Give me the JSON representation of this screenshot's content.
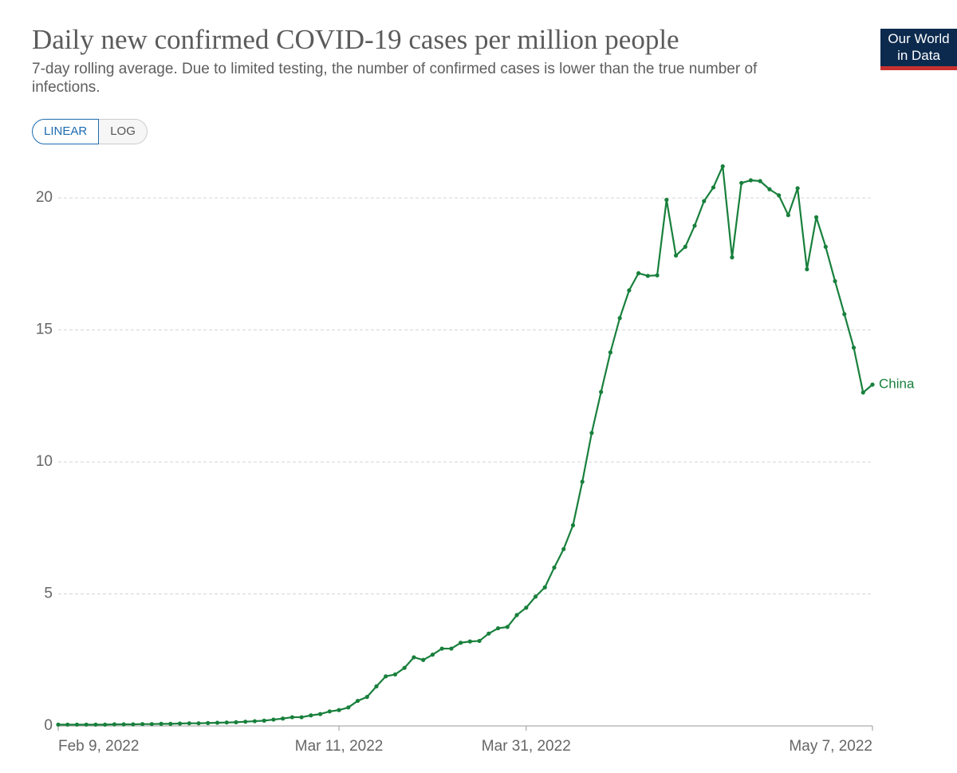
{
  "header": {
    "title": "Daily new confirmed COVID-19 cases per million people",
    "subtitle": "7-day rolling average. Due to limited testing, the number of confirmed cases is lower than the true number of infections."
  },
  "controls": [
    "LINEAR",
    "LOG"
  ],
  "logo": [
    "Our World",
    "in Data"
  ],
  "chart_data": {
    "type": "line",
    "x": [
      "Feb 9, 2022",
      "Feb 10, 2022",
      "Feb 11, 2022",
      "Feb 12, 2022",
      "Feb 13, 2022",
      "Feb 14, 2022",
      "Feb 15, 2022",
      "Feb 16, 2022",
      "Feb 17, 2022",
      "Feb 18, 2022",
      "Feb 19, 2022",
      "Feb 20, 2022",
      "Feb 21, 2022",
      "Feb 22, 2022",
      "Feb 23, 2022",
      "Feb 24, 2022",
      "Feb 25, 2022",
      "Feb 26, 2022",
      "Feb 27, 2022",
      "Feb 28, 2022",
      "Mar 1, 2022",
      "Mar 2, 2022",
      "Mar 3, 2022",
      "Mar 4, 2022",
      "Mar 5, 2022",
      "Mar 6, 2022",
      "Mar 7, 2022",
      "Mar 8, 2022",
      "Mar 9, 2022",
      "Mar 10, 2022",
      "Mar 11, 2022",
      "Mar 12, 2022",
      "Mar 13, 2022",
      "Mar 14, 2022",
      "Mar 15, 2022",
      "Mar 16, 2022",
      "Mar 17, 2022",
      "Mar 18, 2022",
      "Mar 19, 2022",
      "Mar 20, 2022",
      "Mar 21, 2022",
      "Mar 22, 2022",
      "Mar 23, 2022",
      "Mar 24, 2022",
      "Mar 25, 2022",
      "Mar 26, 2022",
      "Mar 27, 2022",
      "Mar 28, 2022",
      "Mar 29, 2022",
      "Mar 30, 2022",
      "Mar 31, 2022",
      "Apr 1, 2022",
      "Apr 2, 2022",
      "Apr 3, 2022",
      "Apr 4, 2022",
      "Apr 5, 2022",
      "Apr 6, 2022",
      "Apr 7, 2022",
      "Apr 8, 2022",
      "Apr 9, 2022",
      "Apr 10, 2022",
      "Apr 11, 2022",
      "Apr 12, 2022",
      "Apr 13, 2022",
      "Apr 14, 2022",
      "Apr 15, 2022",
      "Apr 16, 2022",
      "Apr 17, 2022",
      "Apr 18, 2022",
      "Apr 19, 2022",
      "Apr 20, 2022",
      "Apr 21, 2022",
      "Apr 22, 2022",
      "Apr 23, 2022",
      "Apr 24, 2022",
      "Apr 25, 2022",
      "Apr 26, 2022",
      "Apr 27, 2022",
      "Apr 28, 2022",
      "Apr 29, 2022",
      "Apr 30, 2022",
      "May 1, 2022",
      "May 2, 2022",
      "May 3, 2022",
      "May 4, 2022",
      "May 5, 2022",
      "May 6, 2022",
      "May 7, 2022"
    ],
    "series": [
      {
        "name": "China",
        "color": "#18803c",
        "values": [
          0.05,
          0.05,
          0.05,
          0.05,
          0.05,
          0.05,
          0.06,
          0.06,
          0.06,
          0.07,
          0.07,
          0.08,
          0.08,
          0.09,
          0.1,
          0.1,
          0.11,
          0.12,
          0.13,
          0.14,
          0.16,
          0.18,
          0.2,
          0.24,
          0.28,
          0.33,
          0.33,
          0.4,
          0.45,
          0.55,
          0.6,
          0.7,
          0.95,
          1.1,
          1.5,
          1.88,
          1.95,
          2.2,
          2.6,
          2.5,
          2.7,
          2.93,
          2.93,
          3.15,
          3.2,
          3.22,
          3.5,
          3.7,
          3.75,
          4.2,
          4.48,
          4.9,
          5.25,
          6.0,
          6.7,
          7.6,
          9.25,
          11.1,
          12.65,
          14.15,
          15.45,
          16.5,
          17.15,
          17.05,
          17.07,
          19.93,
          17.82,
          18.15,
          18.95,
          19.88,
          20.4,
          21.2,
          17.75,
          20.57,
          20.67,
          20.64,
          20.33,
          20.1,
          19.35,
          20.37,
          17.3,
          19.27,
          18.15,
          16.85,
          15.6,
          14.33,
          12.63,
          12.93
        ]
      }
    ],
    "xlim": [
      "Feb 9, 2022",
      "May 7, 2022"
    ],
    "xticks": [
      "Feb 9, 2022",
      "Mar 11, 2022",
      "Mar 31, 2022",
      "May 7, 2022"
    ],
    "ylim": [
      0,
      22
    ],
    "yticks": [
      0,
      5,
      10,
      15,
      20
    ],
    "grid": true
  }
}
